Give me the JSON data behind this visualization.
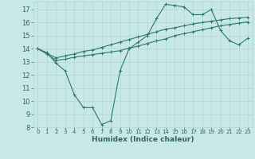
{
  "title": "",
  "xlabel": "Humidex (Indice chaleur)",
  "background_color": "#c8e8e8",
  "line_color": "#2a7a6a",
  "xlim": [
    -0.5,
    23.5
  ],
  "ylim": [
    8,
    17.6
  ],
  "yticks": [
    8,
    9,
    10,
    11,
    12,
    13,
    14,
    15,
    16,
    17
  ],
  "xticks": [
    0,
    1,
    2,
    3,
    4,
    5,
    6,
    7,
    8,
    9,
    10,
    11,
    12,
    13,
    14,
    15,
    16,
    17,
    18,
    19,
    20,
    21,
    22,
    23
  ],
  "series1_x": [
    0,
    1,
    2,
    3,
    4,
    5,
    6,
    7,
    8,
    9,
    10,
    11,
    12,
    13,
    14,
    15,
    16,
    17,
    18,
    19,
    20,
    21,
    22,
    23
  ],
  "series1_y": [
    14.0,
    13.7,
    12.9,
    12.3,
    10.5,
    9.5,
    9.5,
    8.2,
    8.5,
    12.3,
    14.0,
    14.5,
    15.0,
    16.3,
    17.4,
    17.3,
    17.2,
    16.6,
    16.6,
    17.0,
    15.4,
    14.6,
    14.3,
    14.8
  ],
  "series2_x": [
    0,
    1,
    2,
    3,
    4,
    5,
    6,
    7,
    8,
    9,
    10,
    11,
    12,
    13,
    14,
    15,
    16,
    17,
    18,
    19,
    20,
    21,
    22,
    23
  ],
  "series2_y": [
    14.0,
    13.6,
    13.1,
    13.2,
    13.35,
    13.45,
    13.55,
    13.65,
    13.75,
    13.85,
    14.05,
    14.2,
    14.4,
    14.6,
    14.75,
    15.0,
    15.15,
    15.3,
    15.45,
    15.6,
    15.75,
    15.85,
    15.95,
    16.05
  ],
  "series3_x": [
    0,
    1,
    2,
    3,
    4,
    5,
    6,
    7,
    8,
    9,
    10,
    11,
    12,
    13,
    14,
    15,
    16,
    17,
    18,
    19,
    20,
    21,
    22,
    23
  ],
  "series3_y": [
    14.0,
    13.65,
    13.3,
    13.45,
    13.6,
    13.8,
    13.9,
    14.1,
    14.3,
    14.5,
    14.7,
    14.9,
    15.1,
    15.3,
    15.5,
    15.6,
    15.75,
    15.9,
    16.0,
    16.1,
    16.2,
    16.3,
    16.35,
    16.4
  ],
  "grid_color": "#b0d4d4",
  "font_color": "#2a6a5a",
  "tick_fontsize": 5,
  "label_fontsize": 6.5
}
